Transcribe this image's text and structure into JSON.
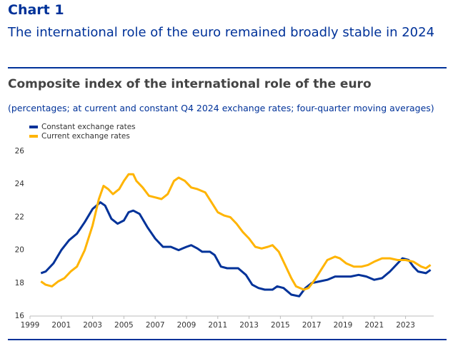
{
  "header": {
    "label": "Chart 1",
    "title": "The international role of the euro remained broadly stable in 2024"
  },
  "chart_data": {
    "type": "line",
    "title": "Composite index of the international role of the euro",
    "subtitle": "(percentages; at current and constant Q4 2024 exchange rates; four-quarter moving averages)",
    "xlim": [
      1999,
      2024.8
    ],
    "xticks": [
      1999,
      2001,
      2003,
      2005,
      2007,
      2009,
      2011,
      2013,
      2015,
      2017,
      2019,
      2021,
      2023
    ],
    "ylim": [
      16,
      26
    ],
    "yticks": [
      16,
      18,
      20,
      22,
      24,
      26
    ],
    "grid": false,
    "legend": "top-left",
    "series": [
      {
        "name": "Constant exchange rates",
        "color": "#003299",
        "x": [
          1999.7,
          2000,
          2000.5,
          2001,
          2001.5,
          2002,
          2002.5,
          2003,
          2003.5,
          2003.8,
          2004.2,
          2004.6,
          2005,
          2005.3,
          2005.6,
          2006,
          2006.5,
          2007,
          2007.5,
          2008,
          2008.5,
          2009,
          2009.3,
          2009.7,
          2010,
          2010.5,
          2010.8,
          2011.2,
          2011.6,
          2012,
          2012.3,
          2012.8,
          2013.2,
          2013.6,
          2014,
          2014.5,
          2014.8,
          2015.2,
          2015.7,
          2016.2,
          2016.6,
          2017,
          2017.5,
          2018,
          2018.5,
          2019,
          2019.5,
          2020,
          2020.5,
          2021,
          2021.5,
          2022,
          2022.5,
          2022.8,
          2023.2,
          2023.5,
          2023.8,
          2024.3,
          2024.6
        ],
        "values": [
          18.6,
          18.7,
          19.2,
          20.0,
          20.6,
          21.0,
          21.7,
          22.5,
          22.9,
          22.7,
          21.9,
          21.6,
          21.8,
          22.3,
          22.4,
          22.2,
          21.4,
          20.7,
          20.2,
          20.2,
          20.0,
          20.2,
          20.3,
          20.1,
          19.9,
          19.9,
          19.7,
          19.0,
          18.9,
          18.9,
          18.9,
          18.5,
          17.9,
          17.7,
          17.6,
          17.6,
          17.8,
          17.7,
          17.3,
          17.2,
          17.7,
          18.0,
          18.1,
          18.2,
          18.4,
          18.4,
          18.4,
          18.5,
          18.4,
          18.2,
          18.3,
          18.7,
          19.2,
          19.5,
          19.4,
          19.0,
          18.7,
          18.6,
          18.8
        ]
      },
      {
        "name": "Current exchange rates",
        "color": "#ffb400",
        "x": [
          1999.7,
          2000,
          2000.4,
          2000.8,
          2001.2,
          2001.6,
          2002,
          2002.5,
          2003,
          2003.4,
          2003.7,
          2004,
          2004.3,
          2004.7,
          2005,
          2005.3,
          2005.6,
          2005.8,
          2006.2,
          2006.6,
          2007,
          2007.4,
          2007.8,
          2008.2,
          2008.5,
          2008.9,
          2009.3,
          2009.7,
          2010.2,
          2010.6,
          2011,
          2011.4,
          2011.8,
          2012.2,
          2012.6,
          2013,
          2013.4,
          2013.8,
          2014.2,
          2014.5,
          2014.9,
          2015.3,
          2015.7,
          2016,
          2016.5,
          2016.8,
          2017.2,
          2017.6,
          2018,
          2018.5,
          2018.8,
          2019.2,
          2019.7,
          2020.2,
          2020.6,
          2021,
          2021.5,
          2022,
          2022.5,
          2023,
          2023.5,
          2024,
          2024.3,
          2024.6
        ],
        "values": [
          18.1,
          17.9,
          17.8,
          18.1,
          18.3,
          18.7,
          19.0,
          20.0,
          21.5,
          23.1,
          23.9,
          23.7,
          23.4,
          23.7,
          24.2,
          24.6,
          24.6,
          24.2,
          23.8,
          23.3,
          23.2,
          23.1,
          23.4,
          24.2,
          24.4,
          24.2,
          23.8,
          23.7,
          23.5,
          22.9,
          22.3,
          22.1,
          22.0,
          21.6,
          21.1,
          20.7,
          20.2,
          20.1,
          20.2,
          20.3,
          19.9,
          19.1,
          18.3,
          17.8,
          17.6,
          17.7,
          18.2,
          18.8,
          19.4,
          19.6,
          19.5,
          19.2,
          19.0,
          19.0,
          19.1,
          19.3,
          19.5,
          19.5,
          19.4,
          19.4,
          19.3,
          19.0,
          18.9,
          19.1
        ]
      }
    ]
  }
}
